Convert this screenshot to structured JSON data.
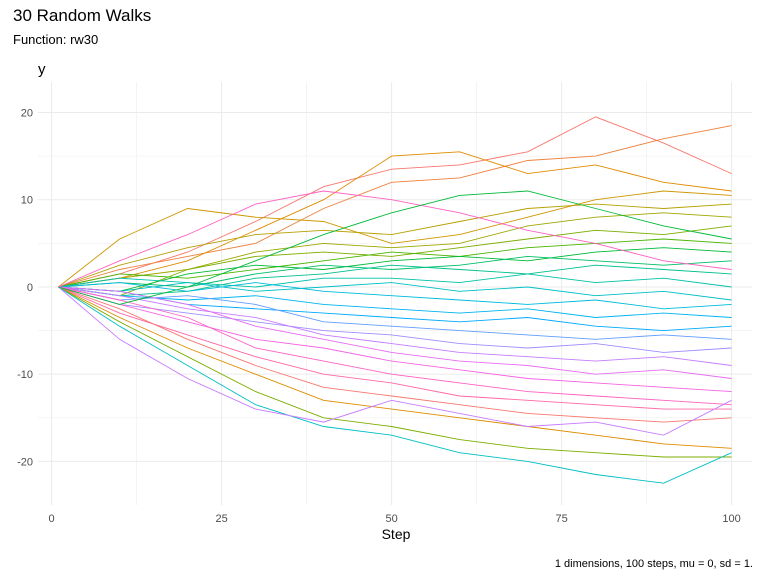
{
  "chart_data": {
    "type": "line",
    "title": "30 Random Walks",
    "subtitle": "Function: rw30",
    "xlabel": "Step",
    "ylabel": "y",
    "caption": "1 dimensions, 100 steps, mu = 0, sd = 1.",
    "xlim": [
      -2,
      103
    ],
    "ylim": [
      -25,
      23.5
    ],
    "xticks": [
      0,
      25,
      50,
      75,
      100
    ],
    "yticks": [
      -20,
      -10,
      0,
      10,
      20
    ],
    "grid": true,
    "legend": "none",
    "series_count": 30,
    "x": [
      1,
      10,
      20,
      30,
      40,
      50,
      60,
      70,
      80,
      90,
      100
    ],
    "series": [
      {
        "values": [
          0,
          1.5,
          4.0,
          7.5,
          11.5,
          13.5,
          14.0,
          15.5,
          19.5,
          16.5,
          13.0
        ]
      },
      {
        "values": [
          0,
          2.0,
          3.5,
          5.0,
          9.0,
          12.0,
          12.5,
          14.5,
          15.0,
          17.0,
          18.5
        ]
      },
      {
        "values": [
          0,
          1.0,
          3.0,
          6.5,
          10.0,
          15.0,
          15.5,
          13.0,
          14.0,
          12.0,
          11.0
        ]
      },
      {
        "values": [
          0,
          5.5,
          9.0,
          8.0,
          7.5,
          5.0,
          6.0,
          8.0,
          10.0,
          11.0,
          10.5
        ]
      },
      {
        "values": [
          0,
          2.5,
          4.5,
          6.0,
          6.5,
          6.0,
          7.5,
          9.0,
          9.5,
          9.0,
          9.5
        ]
      },
      {
        "values": [
          0,
          1.0,
          2.0,
          4.0,
          5.0,
          4.5,
          5.0,
          7.0,
          8.0,
          8.5,
          8.0
        ]
      },
      {
        "values": [
          0,
          -1.0,
          2.0,
          3.5,
          4.0,
          3.5,
          4.5,
          5.5,
          6.5,
          6.0,
          7.0
        ]
      },
      {
        "values": [
          0,
          1.5,
          1.0,
          2.0,
          3.0,
          4.0,
          3.5,
          4.5,
          5.0,
          5.5,
          5.0
        ]
      },
      {
        "values": [
          0,
          -0.5,
          1.5,
          2.5,
          2.0,
          3.0,
          3.5,
          3.0,
          4.0,
          4.5,
          4.0
        ]
      },
      {
        "values": [
          0,
          0.5,
          0.0,
          1.5,
          2.5,
          2.0,
          2.5,
          3.5,
          3.0,
          2.5,
          3.0
        ]
      },
      {
        "values": [
          0,
          -1.0,
          -0.5,
          1.0,
          1.5,
          2.5,
          2.0,
          1.5,
          2.5,
          2.0,
          1.5
        ]
      },
      {
        "values": [
          0,
          1.0,
          0.5,
          0.0,
          1.0,
          1.0,
          0.5,
          1.5,
          0.5,
          1.0,
          0.0
        ]
      },
      {
        "values": [
          0,
          -0.5,
          0.5,
          -0.5,
          0.0,
          0.5,
          -0.5,
          0.0,
          -1.0,
          -0.5,
          -1.5
        ]
      },
      {
        "values": [
          0,
          0.5,
          -0.5,
          0.5,
          -0.5,
          -1.0,
          -1.5,
          -2.0,
          -1.5,
          -2.5,
          -2.0
        ]
      },
      {
        "values": [
          0,
          -1.0,
          -1.5,
          -1.0,
          -2.0,
          -2.5,
          -3.0,
          -2.5,
          -3.5,
          -3.0,
          -3.5
        ]
      },
      {
        "values": [
          0,
          -0.5,
          -2.0,
          -2.5,
          -3.0,
          -3.5,
          -4.0,
          -3.5,
          -4.5,
          -5.0,
          -4.5
        ]
      },
      {
        "values": [
          0,
          -1.5,
          -1.0,
          -2.0,
          -4.0,
          -4.5,
          -5.0,
          -5.5,
          -6.0,
          -5.5,
          -6.0
        ]
      },
      {
        "values": [
          0,
          -2.0,
          -3.0,
          -4.0,
          -5.0,
          -5.5,
          -6.5,
          -7.0,
          -6.5,
          -7.5,
          -7.0
        ]
      },
      {
        "values": [
          0,
          -1.0,
          -2.5,
          -3.5,
          -5.5,
          -6.5,
          -7.5,
          -8.0,
          -8.5,
          -8.0,
          -9.0
        ]
      },
      {
        "values": [
          0,
          -0.5,
          -2.0,
          -4.5,
          -6.0,
          -7.5,
          -8.5,
          -9.0,
          -10.0,
          -9.5,
          -10.5
        ]
      },
      {
        "values": [
          0,
          -2.0,
          -4.0,
          -6.0,
          -7.0,
          -8.5,
          -9.5,
          -10.5,
          -11.0,
          -11.5,
          -12.0
        ]
      },
      {
        "values": [
          0,
          -1.5,
          -3.5,
          -7.0,
          -8.5,
          -10.0,
          -11.0,
          -12.0,
          -12.5,
          -13.0,
          -13.5
        ]
      },
      {
        "values": [
          0,
          -3.0,
          -5.5,
          -8.0,
          -10.0,
          -11.0,
          -12.5,
          -13.0,
          -13.5,
          -14.0,
          -14.0
        ]
      },
      {
        "values": [
          0,
          -2.5,
          -6.0,
          -9.0,
          -11.5,
          -12.5,
          -13.5,
          -14.5,
          -15.0,
          -15.5,
          -15.0
        ]
      },
      {
        "values": [
          0,
          -3.5,
          -7.0,
          -10.0,
          -13.0,
          -14.0,
          -15.0,
          -16.0,
          -17.0,
          -18.0,
          -18.5
        ]
      },
      {
        "values": [
          0,
          -4.0,
          -8.0,
          -12.0,
          -15.0,
          -16.0,
          -17.5,
          -18.5,
          -19.0,
          -19.5,
          -19.5
        ]
      },
      {
        "values": [
          0,
          -4.5,
          -9.0,
          -13.5,
          -16.0,
          -17.0,
          -19.0,
          -20.0,
          -21.5,
          -22.5,
          -19.0
        ]
      },
      {
        "values": [
          0,
          -6.0,
          -10.5,
          -14.0,
          -15.5,
          -13.0,
          -14.5,
          -16.0,
          -15.5,
          -17.0,
          -13.0
        ]
      },
      {
        "values": [
          0,
          3.0,
          6.0,
          9.5,
          11.0,
          10.0,
          8.5,
          6.5,
          5.0,
          3.0,
          2.0
        ]
      },
      {
        "values": [
          0,
          -2.0,
          0.0,
          3.0,
          6.0,
          8.5,
          10.5,
          11.0,
          9.0,
          7.0,
          5.5
        ]
      }
    ],
    "colors": [
      "#F8766D",
      "#ED813E",
      "#DE8C00",
      "#CD9600",
      "#B79F00",
      "#9DA700",
      "#7CAE00",
      "#49B500",
      "#00BA38",
      "#00BE67",
      "#00C08B",
      "#00C1A9",
      "#00BFC4",
      "#00BBDC",
      "#00B4F0",
      "#00A9FF",
      "#619CFF",
      "#9F8CFF",
      "#C77CFF",
      "#E76BF3",
      "#F564E3",
      "#FF61C3",
      "#FF67A4",
      "#F8766D",
      "#DE8C00",
      "#7CAE00",
      "#00BFC4",
      "#C77CFF",
      "#FF61C3",
      "#00BA38"
    ]
  }
}
